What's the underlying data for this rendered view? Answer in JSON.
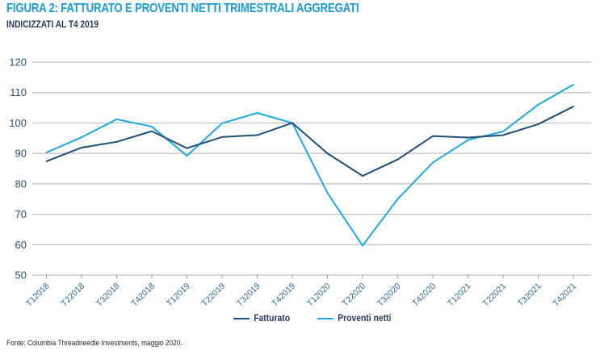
{
  "header": {
    "title": "FIGURA 2: FATTURATO E PROVENTI NETTI TRIMESTRALI AGGREGATI",
    "subtitle": "INDICIZZATI AL T4 2019"
  },
  "footer": {
    "source": "Fonte: Columbia Threadneedle Investments, maggio 2020."
  },
  "colors": {
    "fatturato": "#1f4e79",
    "proventi": "#1fa7e0",
    "grid": "#bdbdbd",
    "title": "#1a9ad6"
  },
  "chart_data": {
    "type": "line",
    "title": "FIGURA 2: FATTURATO E PROVENTI NETTI TRIMESTRALI AGGREGATI",
    "subtitle": "INDICIZZATI AL T4 2019",
    "xlabel": "",
    "ylabel": "",
    "ylim": [
      50,
      120
    ],
    "yticks": [
      50,
      60,
      70,
      80,
      90,
      100,
      110,
      120
    ],
    "grid": true,
    "legend_position": "bottom",
    "categories": [
      "T12018",
      "T22018",
      "T32018",
      "T42018",
      "T12019",
      "T22019",
      "T32019",
      "T42019",
      "T12020",
      "T22020",
      "T32020",
      "T42020",
      "T12021",
      "T22021",
      "T32021",
      "T42021"
    ],
    "series": [
      {
        "name": "Fatturato",
        "values": [
          87.4,
          91.9,
          93.8,
          97.3,
          91.7,
          95.4,
          96.0,
          100.0,
          90.0,
          82.6,
          88.0,
          95.7,
          95.2,
          96.0,
          99.6,
          105.4
        ]
      },
      {
        "name": "Proventi netti",
        "values": [
          90.3,
          95.3,
          101.2,
          98.8,
          89.2,
          99.9,
          103.3,
          100.0,
          77.0,
          59.7,
          75.0,
          87.0,
          94.4,
          97.2,
          106.0,
          112.6
        ]
      }
    ]
  }
}
